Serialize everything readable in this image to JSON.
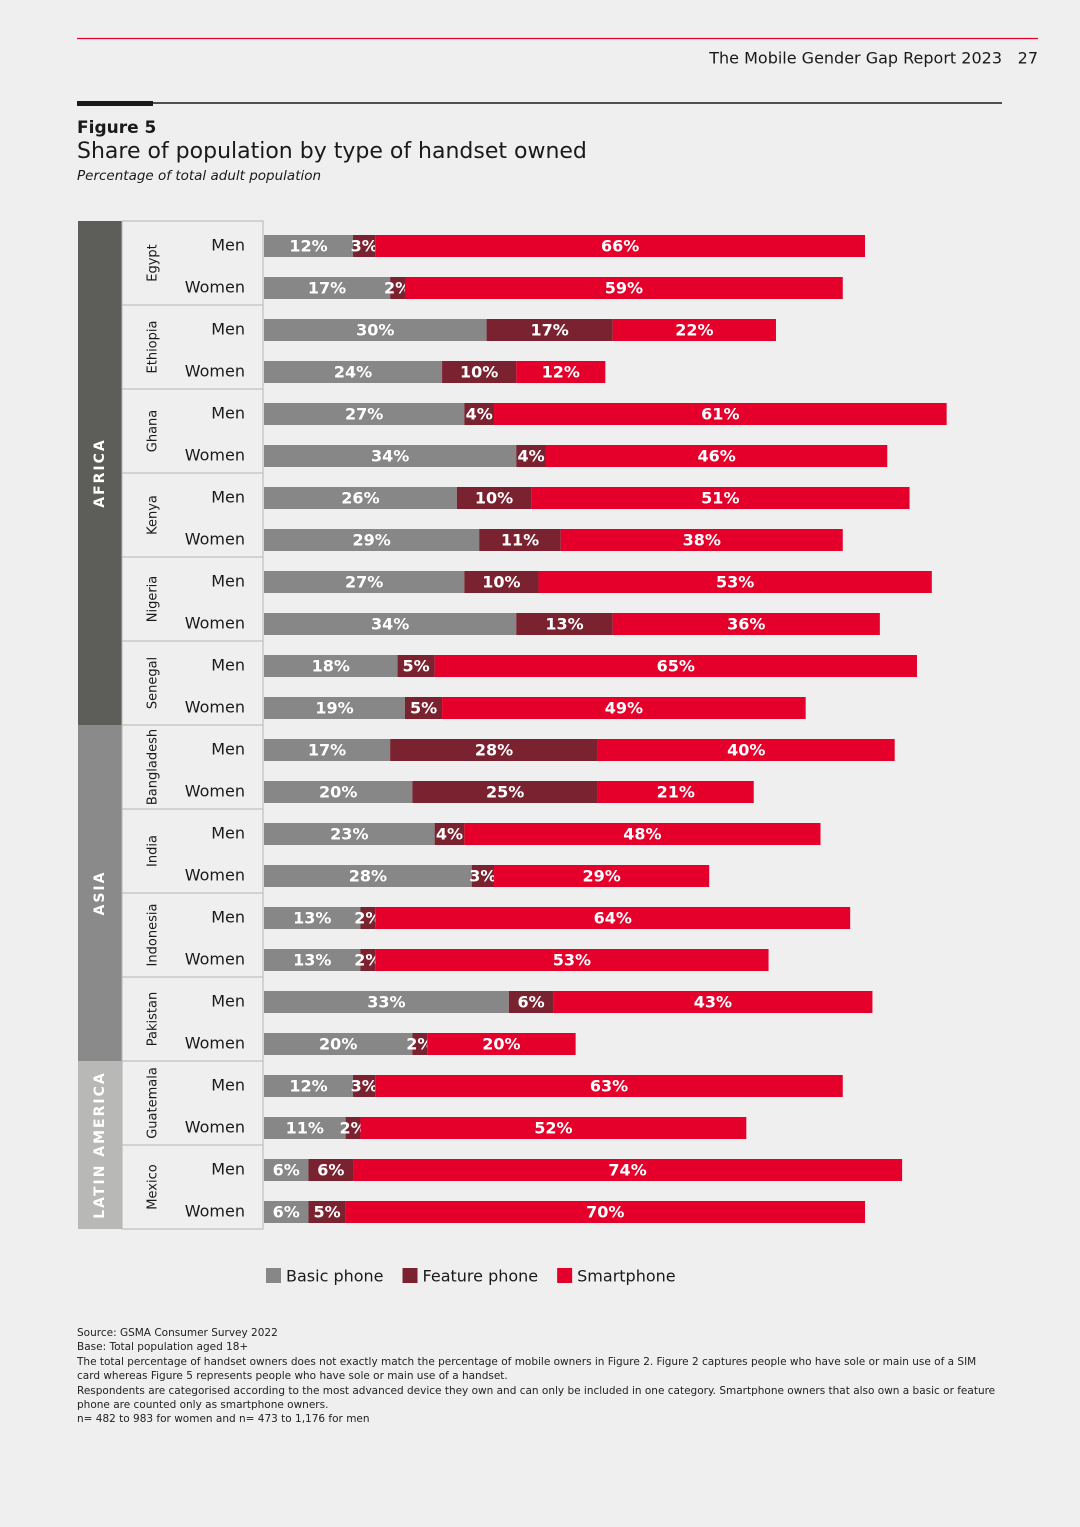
{
  "header": {
    "report": "The Mobile Gender Gap Report 2023",
    "page": 27
  },
  "figure": {
    "label": "Figure 5"
  },
  "chart_data": {
    "type": "bar",
    "stacked": true,
    "orientation": "horizontal",
    "title": "Share of population by type of handset owned",
    "subtitle": "Percentage of total adult population",
    "series": [
      {
        "name": "Basic phone",
        "color": "#878787"
      },
      {
        "name": "Feature phone",
        "color": "#7b2230"
      },
      {
        "name": "Smartphone",
        "color": "#e4002b"
      }
    ],
    "regions": [
      {
        "name": "AFRICA",
        "countries": [
          {
            "name": "Egypt",
            "rows": [
              {
                "label": "Men",
                "values": [
                  12,
                  3,
                  66
                ],
                "value_labels": [
                  "12%",
                  "3%",
                  "66%"
                ]
              },
              {
                "label": "Women",
                "values": [
                  17,
                  2,
                  59
                ],
                "value_labels": [
                  "17%",
                  "2%",
                  "59%"
                ]
              }
            ]
          },
          {
            "name": "Ethiopia",
            "rows": [
              {
                "label": "Men",
                "values": [
                  30,
                  17,
                  22
                ],
                "value_labels": [
                  "30%",
                  "17%",
                  "22%"
                ]
              },
              {
                "label": "Women",
                "values": [
                  24,
                  10,
                  12
                ],
                "value_labels": [
                  "24%",
                  "10%",
                  "12%"
                ]
              }
            ]
          },
          {
            "name": "Ghana",
            "rows": [
              {
                "label": "Men",
                "values": [
                  27,
                  4,
                  61
                ],
                "value_labels": [
                  "27%",
                  "4%",
                  "61%"
                ]
              },
              {
                "label": "Women",
                "values": [
                  34,
                  4,
                  46
                ],
                "value_labels": [
                  "34%",
                  "4%",
                  "46%"
                ]
              }
            ]
          },
          {
            "name": "Kenya",
            "rows": [
              {
                "label": "Men",
                "values": [
                  26,
                  10,
                  51
                ],
                "value_labels": [
                  "26%",
                  "10%",
                  "51%"
                ]
              },
              {
                "label": "Women",
                "values": [
                  29,
                  11,
                  38
                ],
                "value_labels": [
                  "29%",
                  "11%",
                  "38%"
                ]
              }
            ]
          },
          {
            "name": "Nigeria",
            "rows": [
              {
                "label": "Men",
                "values": [
                  27,
                  10,
                  53
                ],
                "value_labels": [
                  "27%",
                  "10%",
                  "53%"
                ]
              },
              {
                "label": "Women",
                "values": [
                  34,
                  13,
                  36
                ],
                "value_labels": [
                  "34%",
                  "13%",
                  "36%"
                ]
              }
            ]
          },
          {
            "name": "Senegal",
            "rows": [
              {
                "label": "Men",
                "values": [
                  18,
                  5,
                  65
                ],
                "value_labels": [
                  "18%",
                  "5%",
                  "65%"
                ]
              },
              {
                "label": "Women",
                "values": [
                  19,
                  5,
                  49
                ],
                "value_labels": [
                  "19%",
                  "5%",
                  "49%"
                ]
              }
            ]
          }
        ]
      },
      {
        "name": "ASIA",
        "countries": [
          {
            "name": "Bangladesh",
            "rows": [
              {
                "label": "Men",
                "values": [
                  17,
                  28,
                  40
                ],
                "value_labels": [
                  "17%",
                  "28%",
                  "40%"
                ]
              },
              {
                "label": "Women",
                "values": [
                  20,
                  25,
                  21
                ],
                "value_labels": [
                  "20%",
                  "25%",
                  "21%"
                ]
              }
            ]
          },
          {
            "name": "India",
            "rows": [
              {
                "label": "Men",
                "values": [
                  23,
                  4,
                  48
                ],
                "value_labels": [
                  "23%",
                  "4%",
                  "48%"
                ]
              },
              {
                "label": "Women",
                "values": [
                  28,
                  3,
                  29
                ],
                "value_labels": [
                  "28%",
                  "3%",
                  "29%"
                ]
              }
            ]
          },
          {
            "name": "Indonesia",
            "rows": [
              {
                "label": "Men",
                "values": [
                  13,
                  2,
                  64
                ],
                "value_labels": [
                  "13%",
                  "2%",
                  "64%"
                ]
              },
              {
                "label": "Women",
                "values": [
                  13,
                  2,
                  53
                ],
                "value_labels": [
                  "13%",
                  "2%",
                  "53%"
                ]
              }
            ]
          },
          {
            "name": "Pakistan",
            "rows": [
              {
                "label": "Men",
                "values": [
                  33,
                  6,
                  43
                ],
                "value_labels": [
                  "33%",
                  "6%",
                  "43%"
                ]
              },
              {
                "label": "Women",
                "values": [
                  20,
                  2,
                  20
                ],
                "value_labels": [
                  "20%",
                  "2%",
                  "20%"
                ]
              }
            ]
          }
        ]
      },
      {
        "name": "LATIN AMERICA",
        "countries": [
          {
            "name": "Guatemala",
            "rows": [
              {
                "label": "Men",
                "values": [
                  12,
                  3,
                  63
                ],
                "value_labels": [
                  "12%",
                  "3%",
                  "63%"
                ]
              },
              {
                "label": "Women",
                "values": [
                  11,
                  2,
                  52
                ],
                "value_labels": [
                  "11%",
                  "2%",
                  "52%"
                ]
              }
            ]
          },
          {
            "name": "Mexico",
            "rows": [
              {
                "label": "Men",
                "values": [
                  6,
                  6,
                  74
                ],
                "value_labels": [
                  "6%",
                  "6%",
                  "74%"
                ]
              },
              {
                "label": "Women",
                "values": [
                  6,
                  5,
                  70
                ],
                "value_labels": [
                  "6%",
                  "5%",
                  "70%"
                ]
              }
            ]
          }
        ]
      }
    ]
  },
  "footnotes": [
    "Source: GSMA Consumer Survey 2022",
    "Base: Total population aged 18+",
    "The total percentage of handset owners does not exactly match the percentage of mobile owners in Figure 2. Figure 2 captures people who have sole or main use of a SIM card whereas Figure 5 represents people who have sole or main use of a handset.",
    "Respondents are categorised according to the most advanced device they own and can only be included in one category. Smartphone owners that also own a basic or feature phone are counted only as smartphone owners.",
    "n= 482 to 983 for women and n= 473 to 1,176 for men"
  ]
}
